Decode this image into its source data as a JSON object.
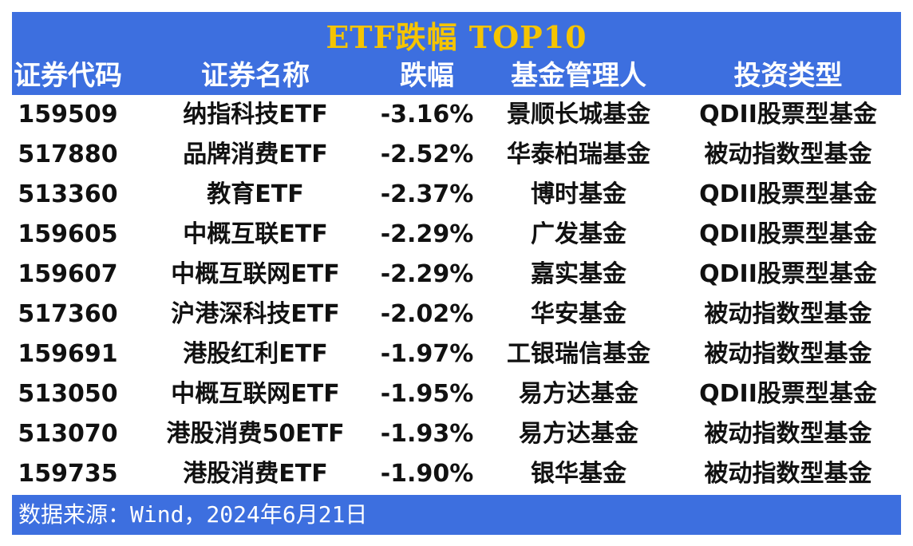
{
  "title": "ETF跌幅 TOP10",
  "source": "数据来源：Wind，2024年6月21日",
  "colors": {
    "header_bg": "#3d6fdf",
    "title_text": "#f5c400",
    "header_text": "#ffffff",
    "body_text": "#111111"
  },
  "chart_data": {
    "type": "table",
    "title": "ETF跌幅 TOP10",
    "columns": [
      "证券代码",
      "证券名称",
      "跌幅",
      "基金管理人",
      "投资类型"
    ],
    "rows": [
      [
        "159509",
        "纳指科技ETF",
        "-3.16%",
        "景顺长城基金",
        "QDII股票型基金"
      ],
      [
        "517880",
        "品牌消费ETF",
        "-2.52%",
        "华泰柏瑞基金",
        "被动指数型基金"
      ],
      [
        "513360",
        "教育ETF",
        "-2.37%",
        "博时基金",
        "QDII股票型基金"
      ],
      [
        "159605",
        "中概互联ETF",
        "-2.29%",
        "广发基金",
        "QDII股票型基金"
      ],
      [
        "159607",
        "中概互联网ETF",
        "-2.29%",
        "嘉实基金",
        "QDII股票型基金"
      ],
      [
        "517360",
        "沪港深科技ETF",
        "-2.02%",
        "华安基金",
        "被动指数型基金"
      ],
      [
        "159691",
        "港股红利ETF",
        "-1.97%",
        "工银瑞信基金",
        "被动指数型基金"
      ],
      [
        "513050",
        "中概互联网ETF",
        "-1.95%",
        "易方达基金",
        "QDII股票型基金"
      ],
      [
        "513070",
        "港股消费50ETF",
        "-1.93%",
        "易方达基金",
        "被动指数型基金"
      ],
      [
        "159735",
        "港股消费ETF",
        "-1.90%",
        "银华基金",
        "被动指数型基金"
      ]
    ],
    "source": "数据来源：Wind，2024年6月21日"
  }
}
